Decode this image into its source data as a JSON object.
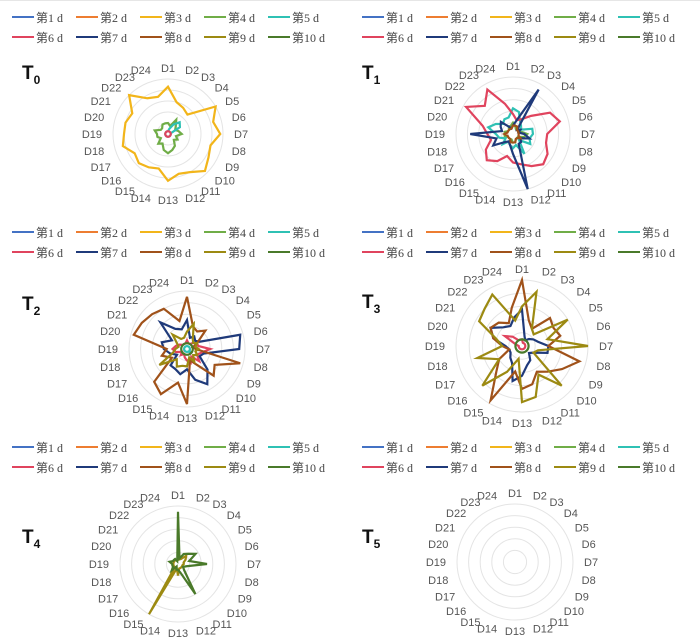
{
  "legend": [
    {
      "label": "第1 d",
      "color": "#4472C4"
    },
    {
      "label": "第2 d",
      "color": "#ED7D31"
    },
    {
      "label": "第3 d",
      "color": "#F2B51A"
    },
    {
      "label": "第4 d",
      "color": "#70AD47"
    },
    {
      "label": "第5 d",
      "color": "#2FC1B4"
    },
    {
      "label": "第6 d",
      "color": "#E0445E"
    },
    {
      "label": "第7 d",
      "color": "#1F3A7A"
    },
    {
      "label": "第8 d",
      "color": "#A0521A"
    },
    {
      "label": "第9 d",
      "color": "#9C8A12"
    },
    {
      "label": "第10 d",
      "color": "#4A7A2A"
    }
  ],
  "chart_data": [
    {
      "type": "radar",
      "title": "T",
      "subscript": "0",
      "axes": [
        "D1",
        "D2",
        "D3",
        "D4",
        "D5",
        "D6",
        "D7",
        "D8",
        "D9",
        "D10",
        "D11",
        "D12",
        "D13",
        "D14",
        "D15",
        "D16",
        "D17",
        "D18",
        "D19",
        "D20",
        "D21",
        "D22",
        "D23",
        "D24"
      ],
      "rlim": [
        0,
        100
      ],
      "series": [
        {
          "name": "第4 d",
          "values": [
            20,
            15,
            30,
            20,
            15,
            20,
            25,
            15,
            20,
            15,
            25,
            30,
            35,
            30,
            20,
            25,
            15,
            20,
            20,
            25,
            15,
            15,
            20,
            20
          ]
        },
        {
          "name": "第5 d",
          "values": [
            5,
            10,
            20,
            30,
            25,
            5,
            5,
            5,
            5,
            5,
            5,
            5,
            5,
            5,
            5,
            5,
            5,
            5,
            5,
            5,
            5,
            5,
            5,
            5
          ]
        },
        {
          "name": "第6 d",
          "values": [
            5,
            5,
            5,
            5,
            5,
            5,
            5,
            5,
            5,
            5,
            5,
            5,
            5,
            5,
            5,
            5,
            5,
            5,
            5,
            5,
            5,
            5,
            5,
            5
          ]
        },
        {
          "name": "第3 d",
          "values": [
            86,
            60,
            55,
            50,
            100,
            85,
            95,
            80,
            85,
            95,
            80,
            75,
            85,
            65,
            70,
            75,
            70,
            85,
            80,
            80,
            75,
            100,
            75,
            70
          ]
        }
      ]
    },
    {
      "type": "radar",
      "title": "T",
      "subscript": "1",
      "axes": [
        "D1",
        "D2",
        "D3",
        "D4",
        "D5",
        "D6",
        "D7",
        "D8",
        "D9",
        "D10",
        "D11",
        "D12",
        "D13",
        "D14",
        "D15",
        "D16",
        "D17",
        "D18",
        "D19",
        "D20",
        "D21",
        "D22",
        "D23",
        "D24"
      ],
      "rlim": [
        0,
        100
      ],
      "series": [
        {
          "name": "第4 d",
          "values": [
            20,
            15,
            10,
            10,
            10,
            15,
            25,
            20,
            10,
            10,
            10,
            15,
            15,
            10,
            10,
            10,
            10,
            15,
            15,
            15,
            10,
            10,
            15,
            15
          ]
        },
        {
          "name": "第5 d",
          "values": [
            45,
            40,
            25,
            20,
            15,
            35,
            35,
            30,
            35,
            15,
            40,
            20,
            25,
            20,
            15,
            25,
            15,
            25,
            30,
            45,
            35,
            25,
            30,
            30
          ]
        },
        {
          "name": "第6 d",
          "values": [
            35,
            25,
            30,
            45,
            75,
            85,
            60,
            60,
            70,
            75,
            65,
            55,
            50,
            40,
            55,
            65,
            55,
            40,
            45,
            55,
            95,
            70,
            90,
            55
          ]
        },
        {
          "name": "第7 d",
          "values": [
            15,
            25,
            90,
            10,
            15,
            10,
            20,
            30,
            15,
            20,
            20,
            100,
            35,
            20,
            15,
            20,
            40,
            30,
            75,
            20,
            25,
            30,
            15,
            10
          ]
        },
        {
          "name": "第8 d",
          "values": [
            15,
            15,
            15,
            10,
            10,
            10,
            10,
            10,
            15,
            10,
            10,
            15,
            15,
            15,
            10,
            10,
            10,
            10,
            15,
            10,
            10,
            10,
            10,
            10
          ]
        }
      ]
    },
    {
      "type": "radar",
      "title": "T",
      "subscript": "2",
      "axes": [
        "D1",
        "D2",
        "D3",
        "D4",
        "D5",
        "D6",
        "D7",
        "D8",
        "D9",
        "D10",
        "D11",
        "D12",
        "D13",
        "D14",
        "D15",
        "D16",
        "D17",
        "D18",
        "D19",
        "D20",
        "D21",
        "D22",
        "D23",
        "D24"
      ],
      "rlim": [
        0,
        100
      ],
      "series": [
        {
          "name": "第5 d",
          "values": [
            5,
            5,
            5,
            5,
            5,
            5,
            5,
            5,
            5,
            10,
            5,
            5,
            5,
            5,
            5,
            5,
            5,
            5,
            5,
            5,
            5,
            5,
            5,
            5
          ]
        },
        {
          "name": "第6 d",
          "values": [
            15,
            10,
            10,
            15,
            20,
            20,
            40,
            25,
            20,
            30,
            15,
            25,
            20,
            15,
            10,
            15,
            10,
            20,
            25,
            20,
            15,
            10,
            10,
            10
          ]
        },
        {
          "name": "第7 d",
          "values": [
            50,
            20,
            25,
            20,
            25,
            95,
            90,
            30,
            25,
            50,
            70,
            55,
            35,
            45,
            40,
            40,
            20,
            30,
            40,
            45,
            30,
            65,
            40,
            35
          ]
        },
        {
          "name": "第8 d",
          "values": [
            90,
            40,
            35,
            45,
            20,
            10,
            15,
            95,
            55,
            65,
            30,
            20,
            95,
            60,
            90,
            80,
            30,
            45,
            35,
            95,
            90,
            85,
            80,
            50
          ]
        },
        {
          "name": "第9 d",
          "values": [
            30,
            45,
            20,
            15,
            20,
            15,
            20,
            15,
            20,
            15,
            25,
            15,
            30,
            30,
            35,
            25,
            55,
            25,
            20,
            15,
            20,
            35,
            20,
            20
          ]
        },
        {
          "name": "第10 d",
          "values": [
            10,
            10,
            10,
            10,
            10,
            10,
            10,
            10,
            10,
            10,
            10,
            10,
            10,
            10,
            10,
            10,
            10,
            10,
            10,
            10,
            10,
            10,
            10,
            10
          ]
        }
      ]
    },
    {
      "type": "radar",
      "title": "T",
      "subscript": "3",
      "axes": [
        "D1",
        "D2",
        "D3",
        "D4",
        "D5",
        "D6",
        "D7",
        "D8",
        "D9",
        "D10",
        "D11",
        "D12",
        "D13",
        "D14",
        "D15",
        "D16",
        "D17",
        "D18",
        "D19",
        "D20",
        "D21",
        "D22",
        "D23",
        "D24"
      ],
      "rlim": [
        0,
        100
      ],
      "series": [
        {
          "name": "第6 d",
          "values": [
            10,
            5,
            5,
            5,
            5,
            5,
            5,
            5,
            5,
            5,
            5,
            5,
            5,
            5,
            5,
            5,
            5,
            5,
            5,
            10,
            30,
            20,
            10,
            10
          ]
        },
        {
          "name": "第7 d",
          "values": [
            55,
            15,
            10,
            15,
            20,
            25,
            40,
            40,
            20,
            15,
            25,
            30,
            45,
            55,
            30,
            25,
            20,
            20,
            25,
            45,
            55,
            40,
            35,
            45
          ]
        },
        {
          "name": "第8 d",
          "values": [
            100,
            40,
            30,
            60,
            55,
            60,
            40,
            90,
            70,
            55,
            45,
            60,
            65,
            40,
            95,
            55,
            40,
            20,
            30,
            45,
            55,
            50,
            40,
            60
          ]
        },
        {
          "name": "第9 d",
          "values": [
            60,
            85,
            30,
            25,
            80,
            40,
            100,
            25,
            20,
            85,
            50,
            80,
            85,
            20,
            45,
            85,
            40,
            70,
            30,
            40,
            75,
            80,
            90,
            40
          ]
        },
        {
          "name": "第10 d",
          "values": [
            10,
            10,
            10,
            10,
            10,
            10,
            10,
            10,
            10,
            10,
            10,
            10,
            10,
            10,
            10,
            10,
            10,
            10,
            10,
            10,
            10,
            10,
            10,
            10
          ]
        }
      ]
    },
    {
      "type": "radar",
      "title": "T",
      "subscript": "4",
      "axes": [
        "D1",
        "D2",
        "D3",
        "D4",
        "D5",
        "D6",
        "D7",
        "D8",
        "D9",
        "D10",
        "D11",
        "D12",
        "D13",
        "D14",
        "D15",
        "D16",
        "D17",
        "D18",
        "D19",
        "D20",
        "D21",
        "D22",
        "D23",
        "D24"
      ],
      "rlim": [
        0,
        100
      ],
      "series": [
        {
          "name": "第9 d",
          "values": [
            8,
            8,
            10,
            20,
            15,
            10,
            10,
            8,
            8,
            8,
            8,
            8,
            20,
            8,
            100,
            8,
            8,
            8,
            8,
            8,
            8,
            8,
            8,
            8
          ]
        },
        {
          "name": "第10 d",
          "values": [
            90,
            10,
            20,
            25,
            35,
            20,
            50,
            15,
            10,
            15,
            60,
            15,
            10,
            10,
            5,
            15,
            10,
            10,
            10,
            15,
            10,
            10,
            10,
            5
          ]
        }
      ]
    },
    {
      "type": "radar",
      "title": "T",
      "subscript": "5",
      "axes": [
        "D1",
        "D2",
        "D3",
        "D4",
        "D5",
        "D6",
        "D7",
        "D8",
        "D9",
        "D10",
        "D11",
        "D12",
        "D13",
        "D14",
        "D15",
        "D16",
        "D17",
        "D18",
        "D19",
        "D20",
        "D21",
        "D22",
        "D23",
        "D24"
      ],
      "rlim": [
        0,
        100
      ],
      "series": []
    }
  ]
}
